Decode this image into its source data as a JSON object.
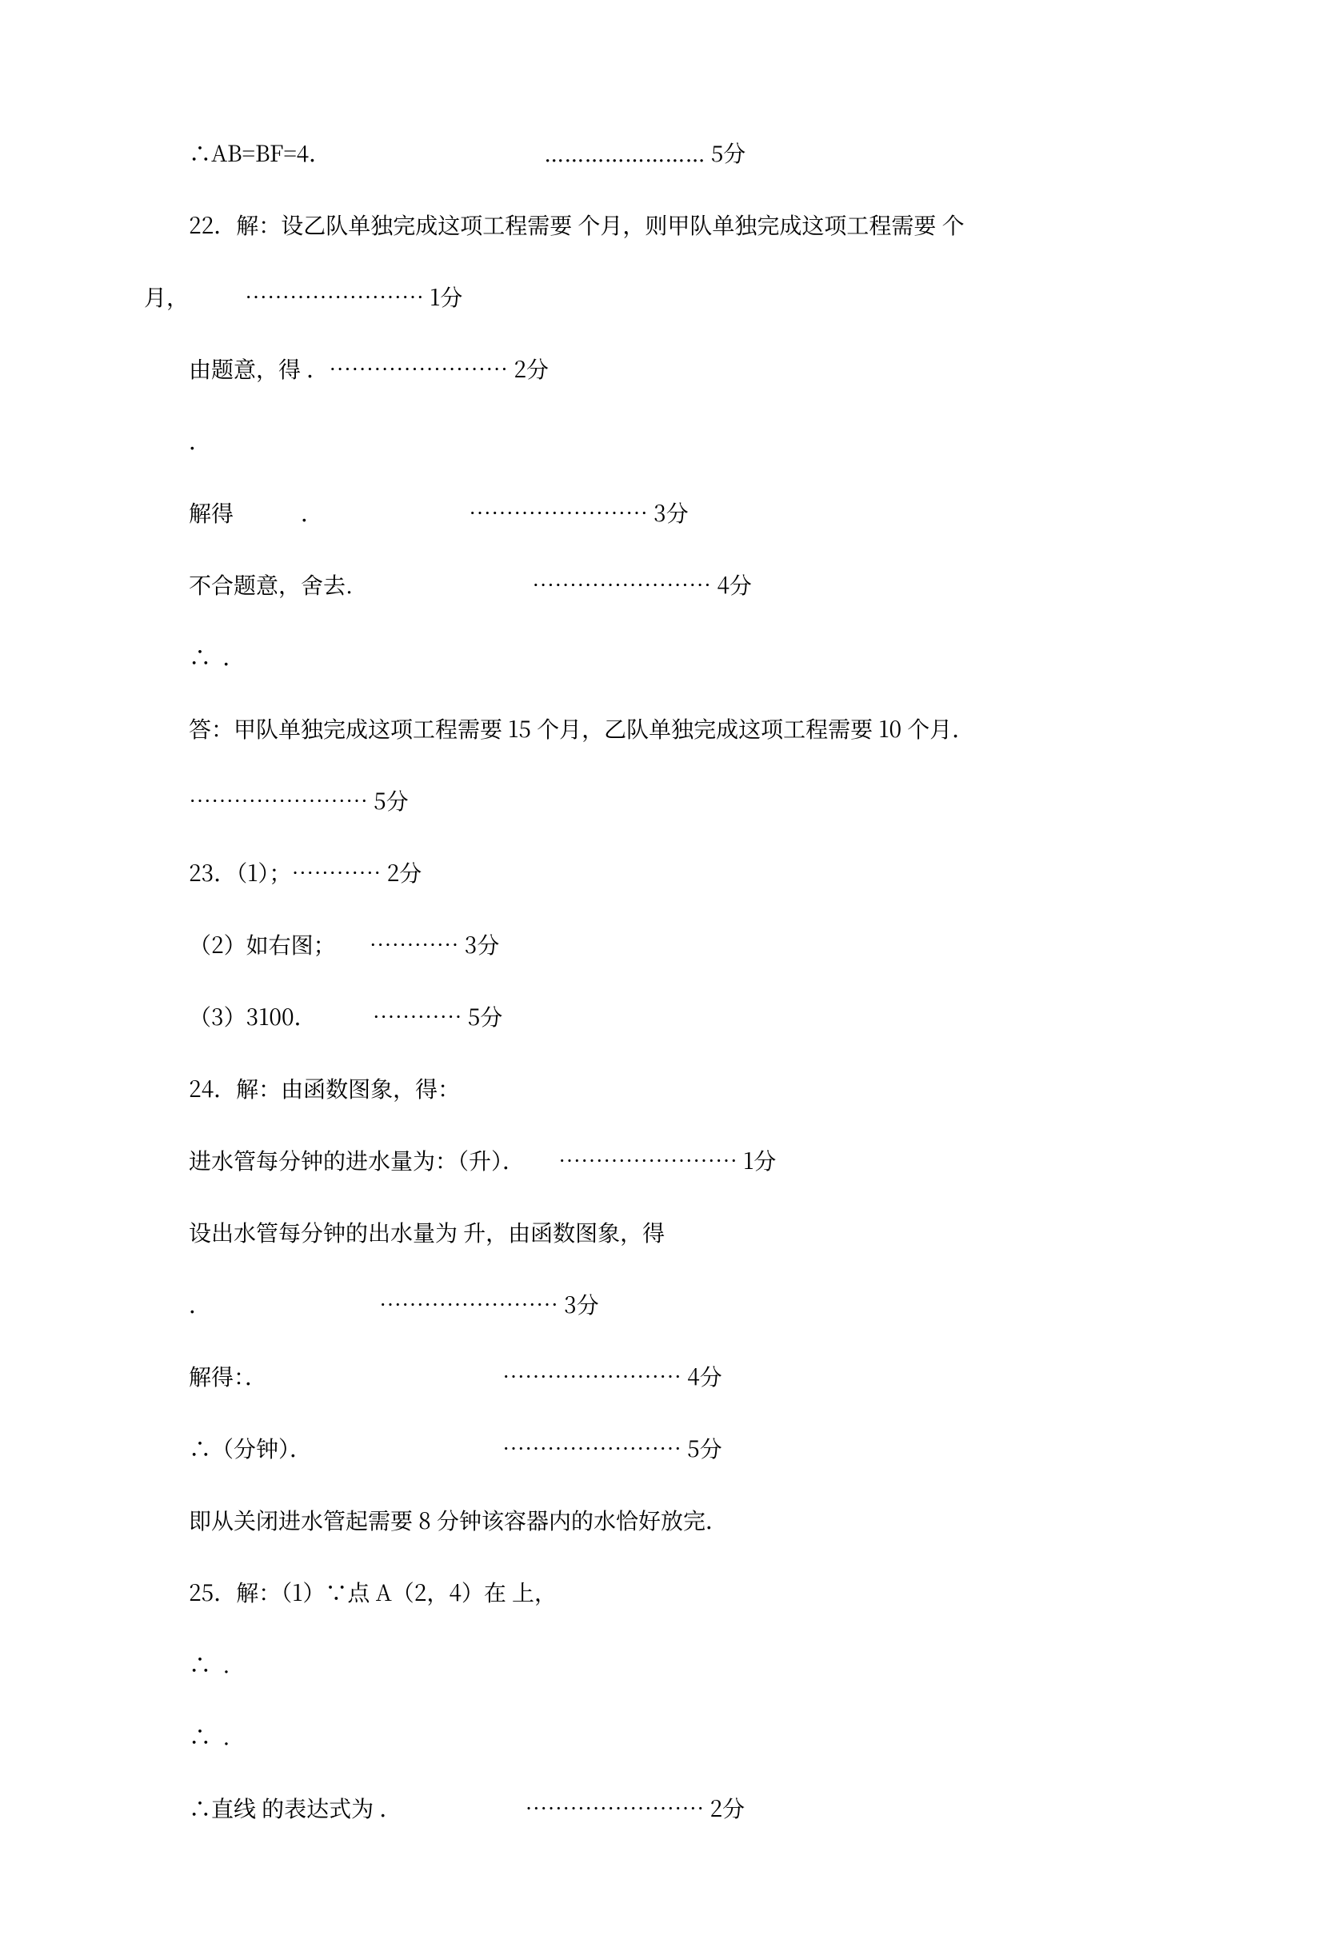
{
  "lines": [
    {
      "text": "∴AB=BF=4．　　　　　　　　　　…………………… 5分"
    },
    {
      "text": "22．解：设乙队单独完成这项工程需要 个月，则甲队单独完成这项工程需要 个"
    },
    {
      "text": "月，　　　…………………… 1分",
      "no_indent": true
    },
    {
      "text": "由题意，得 ．…………………… 2分"
    },
    {
      "text": "．"
    },
    {
      "text": "解得　　　．　　　　　　　…………………… 3分"
    },
    {
      "text": "不合题意，舍去.　　　　　　　　…………………… 4分"
    },
    {
      "text": "∴  ．"
    },
    {
      "text": "答：甲队单独完成这项工程需要 15 个月，乙队单独完成这项工程需要 10 个月．"
    },
    {
      "text": "…………………… 5分"
    },
    {
      "text": "23．（1）；………… 2分"
    },
    {
      "text": "（2）如右图；　　………… 3分"
    },
    {
      "text": "（3）3100．　　　………… 5分"
    },
    {
      "text": "24．解：由函数图象，得："
    },
    {
      "text": "进水管每分钟的进水量为：（升）．　　…………………… 1分"
    },
    {
      "text": "设出水管每分钟的出水量为 升，由函数图象，得"
    },
    {
      "text": "．　　　　　　　　…………………… 3分"
    },
    {
      "text": "解得：．　　　　　　　　　　　…………………… 4分"
    },
    {
      "text": "∴（分钟）．　　　　　　　　　…………………… 5分"
    },
    {
      "text": "即从关闭进水管起需要 8 分钟该容器内的水恰好放完．"
    },
    {
      "text": "25．解：（1）∵点 A（2，4）在 上，"
    },
    {
      "text": "∴  ."
    },
    {
      "text": "∴  ."
    },
    {
      "text": "∴直线 的表达式为 ．　　　　　　…………………… 2分"
    }
  ]
}
